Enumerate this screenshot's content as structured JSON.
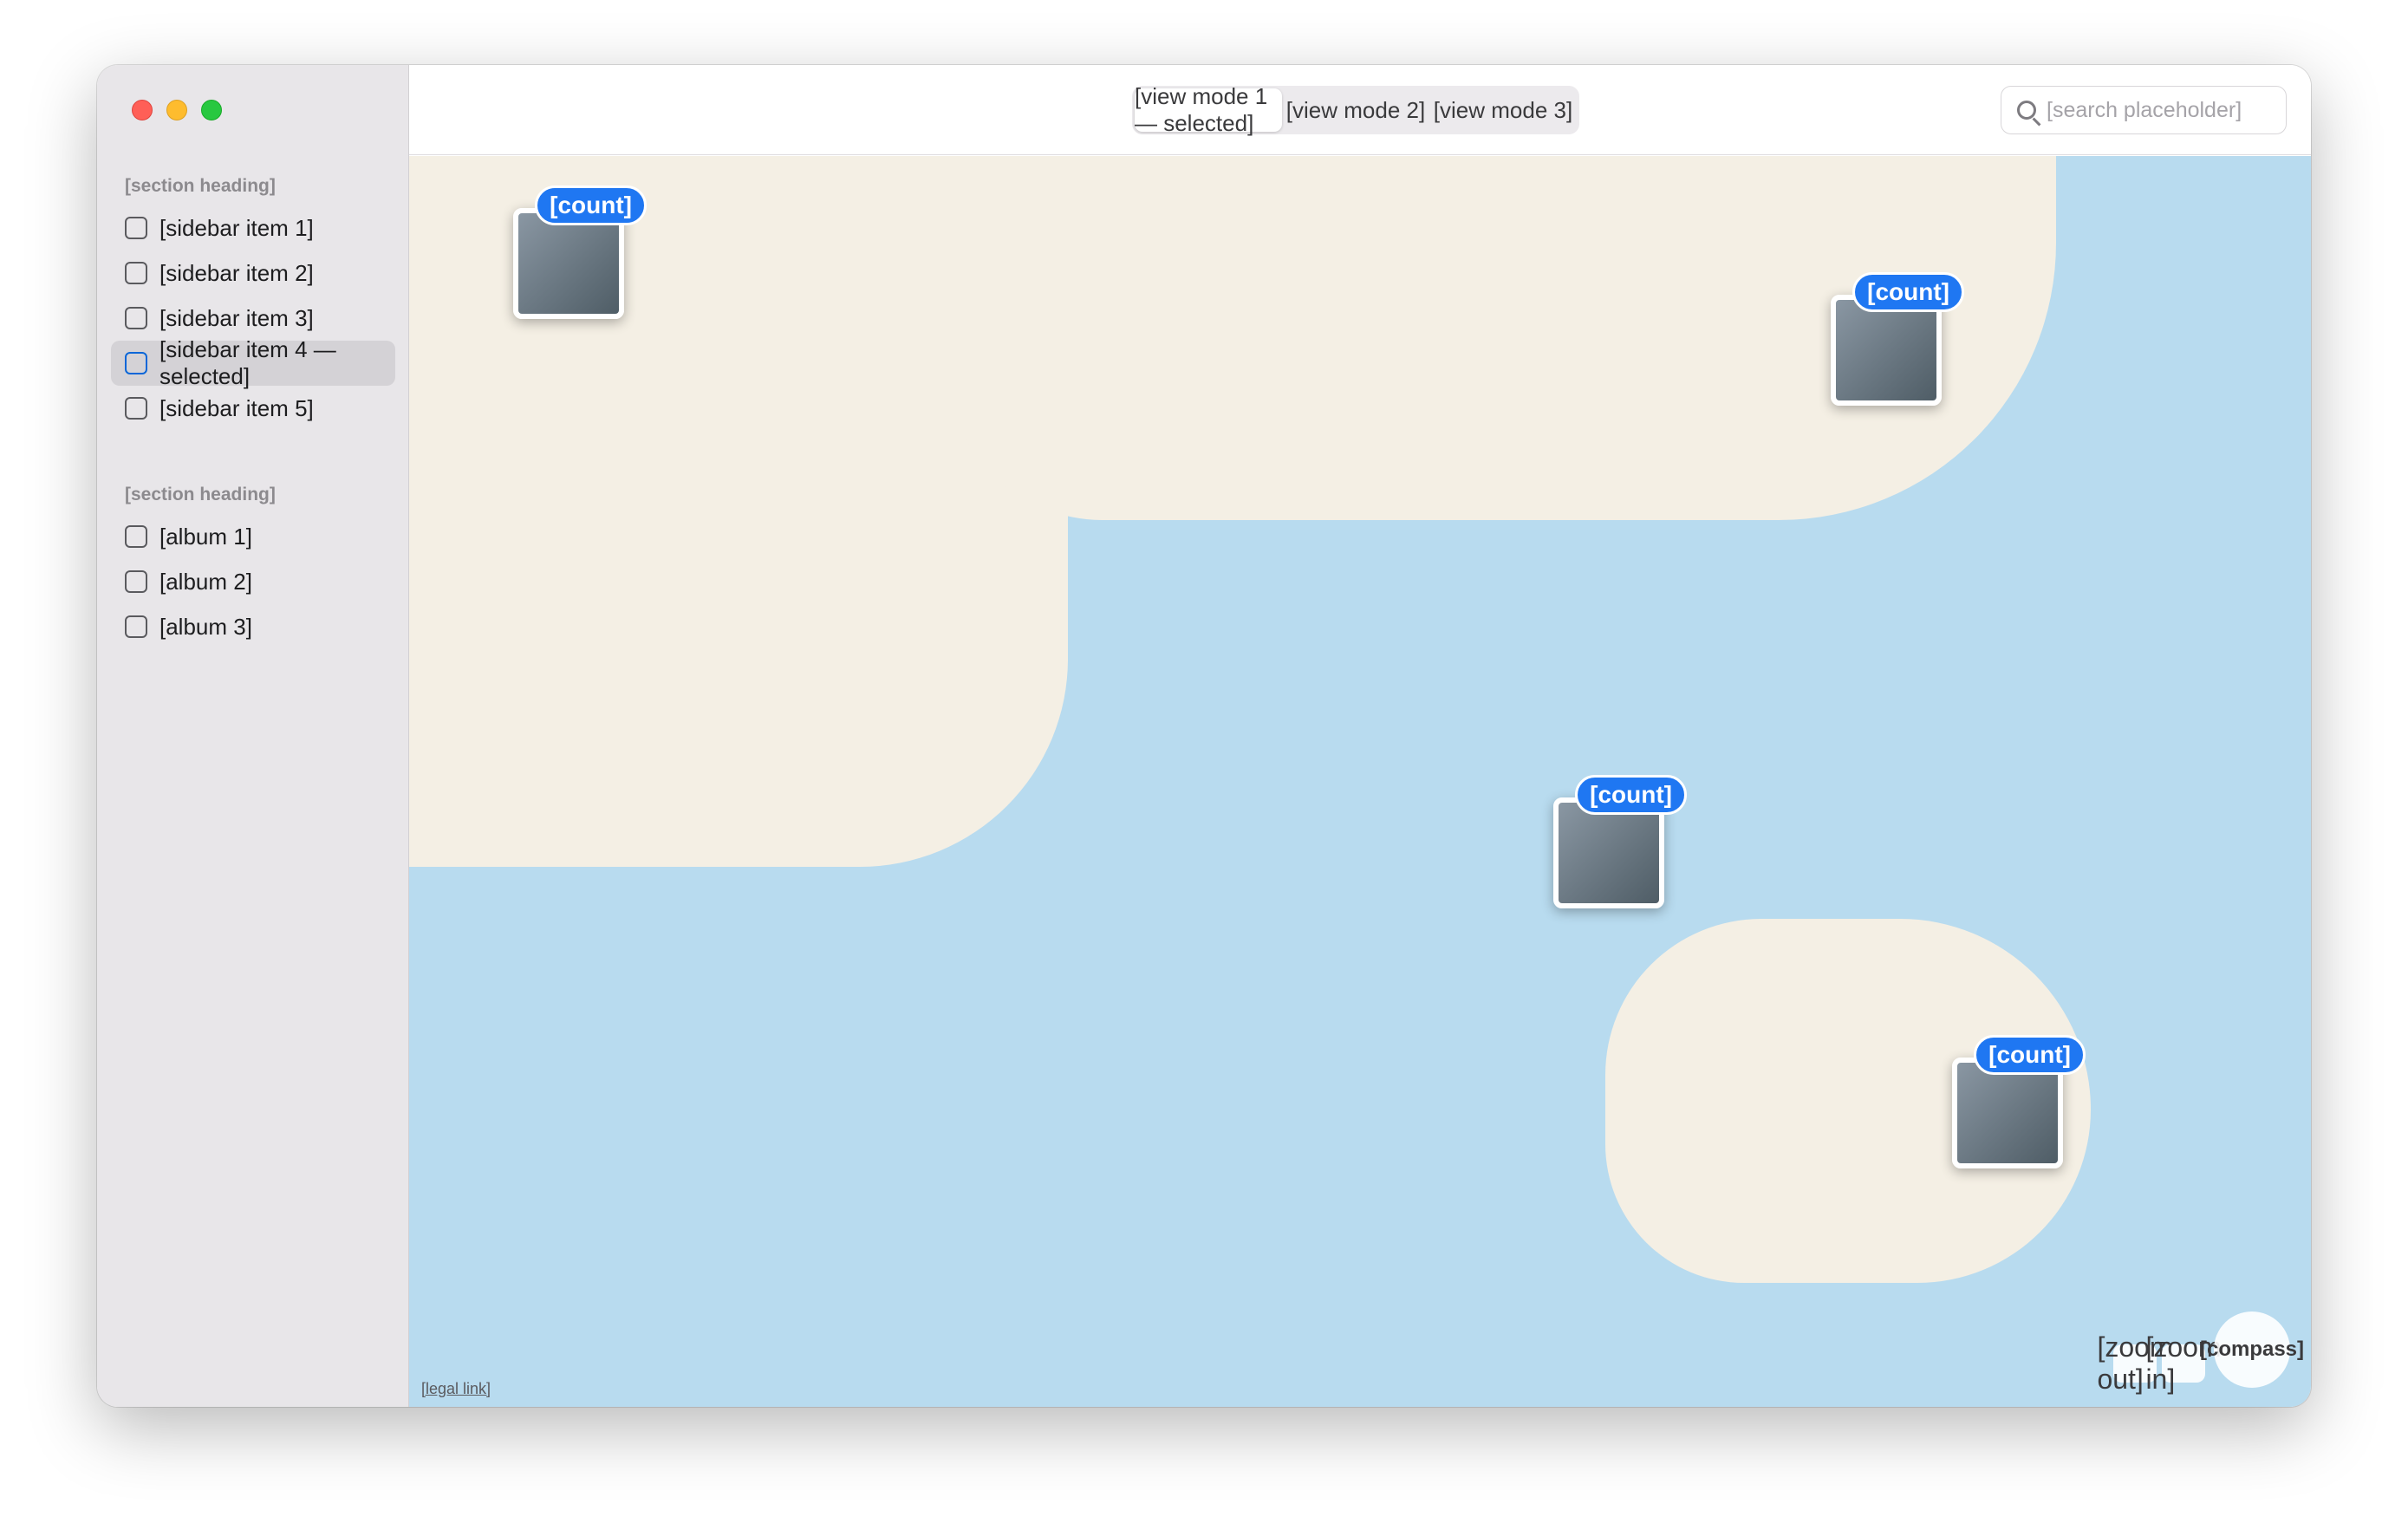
{
  "sidebar": {
    "photos_heading": "[section heading]",
    "photos_items": [
      {
        "label": "[sidebar item 1]"
      },
      {
        "label": "[sidebar item 2]"
      },
      {
        "label": "[sidebar item 3]"
      },
      {
        "label": "[sidebar item 4 — selected]"
      },
      {
        "label": "[sidebar item 5]"
      }
    ],
    "albums_heading": "[section heading]",
    "albums_items": [
      {
        "label": "[album 1]"
      },
      {
        "label": "[album 2]"
      },
      {
        "label": "[album 3]"
      }
    ]
  },
  "toolbar": {
    "view_modes": [
      {
        "label": "[view mode 1 — selected]"
      },
      {
        "label": "[view mode 2]"
      },
      {
        "label": "[view mode 3]"
      }
    ],
    "search_placeholder": "[search placeholder]"
  },
  "map": {
    "clusters": [
      {
        "count": "[count]"
      },
      {
        "count": "[count]"
      },
      {
        "count": "[count]"
      },
      {
        "count": "[count]"
      }
    ],
    "zoom_out_label": "[zoom out]",
    "zoom_in_label": "[zoom in]",
    "compass_label": "[compass]",
    "legal_label": "[legal link]"
  },
  "colors": {
    "accent": "#1f77f2",
    "water": "#b8dbef",
    "land": "#f4efe4",
    "sidebar": "#e8e6e9"
  }
}
